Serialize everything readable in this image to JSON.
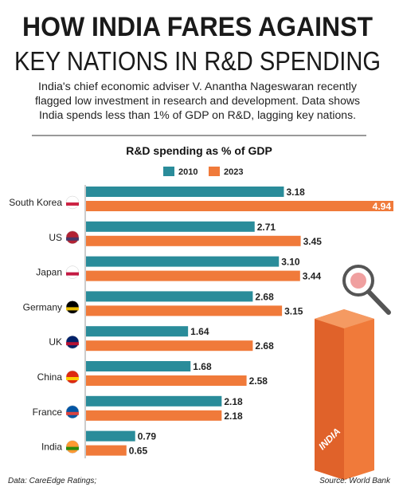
{
  "chart_data": {
    "type": "bar",
    "orientation": "horizontal",
    "title": [
      "HOW INDIA FARES AGAINST",
      "KEY NATIONS IN R&D SPENDING"
    ],
    "description": [
      "India's chief economic adviser V. Anantha Nageswaran recently",
      "flagged low investment in research and development. Data shows",
      "India spends less than 1% of GDP on R&D, lagging key nations."
    ],
    "chart_title": "R&D spending as % of GDP",
    "categories": [
      "South Korea",
      "US",
      "Japan",
      "Germany",
      "UK",
      "China",
      "France",
      "India"
    ],
    "series": [
      {
        "name": "2010",
        "color": "#2a8c9a",
        "values": [
          3.18,
          2.71,
          3.1,
          2.68,
          1.64,
          1.68,
          2.18,
          0.79
        ],
        "value_labels": [
          "3.18",
          "2.71",
          "3.10",
          "2.68",
          "1.64",
          "1.68",
          "2.18",
          "0.79"
        ]
      },
      {
        "name": "2023",
        "color": "#f07a3a",
        "values": [
          4.94,
          3.45,
          3.44,
          3.15,
          2.68,
          2.58,
          2.18,
          0.65
        ],
        "value_labels": [
          "4.94",
          "3.45",
          "3.44",
          "3.15",
          "2.68",
          "2.58",
          "2.18",
          "0.65"
        ]
      }
    ],
    "illustration_label": "INDIA",
    "notes": "Data: CareEdge Ratings;",
    "source": "Source: World Bank"
  }
}
